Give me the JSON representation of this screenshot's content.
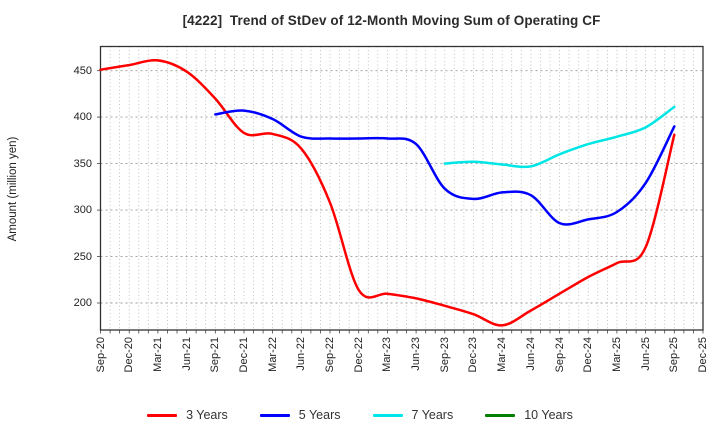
{
  "figure": {
    "title": "[4222]  Trend of StDev of 12-Month Moving Sum of Operating CF"
  },
  "chart_data": {
    "type": "line",
    "title": "[4222]  Trend of StDev of 12-Month Moving Sum of Operating CF",
    "xlabel": "",
    "ylabel": "Amount (million yen)",
    "categories": [
      "Sep-20",
      "Dec-20",
      "Mar-21",
      "Jun-21",
      "Sep-21",
      "Dec-21",
      "Mar-22",
      "Jun-22",
      "Sep-22",
      "Dec-22",
      "Mar-23",
      "Jun-23",
      "Sep-23",
      "Dec-23",
      "Mar-24",
      "Jun-24",
      "Sep-24",
      "Dec-24",
      "Mar-25",
      "Jun-25",
      "Sep-25",
      "Dec-25"
    ],
    "yticks": [
      200,
      250,
      300,
      350,
      400,
      450
    ],
    "ylim": [
      171,
      476
    ],
    "grid": true,
    "minor_vertical_grid_per_interval": 3,
    "legend_position": "bottom",
    "series": [
      {
        "name": "3 Years",
        "color": "#ff0000",
        "values": [
          451,
          456,
          461,
          449,
          420,
          383,
          382,
          366,
          308,
          214,
          210,
          205,
          197,
          188,
          176,
          192,
          210,
          228,
          243,
          260,
          381,
          null
        ]
      },
      {
        "name": "5 Years",
        "color": "#0000ff",
        "values": [
          null,
          null,
          null,
          null,
          403,
          407,
          398,
          379,
          377,
          377,
          377,
          371,
          323,
          312,
          319,
          316,
          286,
          290,
          298,
          329,
          390,
          null
        ]
      },
      {
        "name": "7 Years",
        "color": "#00e5e5",
        "values": [
          null,
          null,
          null,
          null,
          null,
          null,
          null,
          null,
          null,
          null,
          null,
          null,
          350,
          352,
          349,
          347,
          360,
          371,
          379,
          389,
          411,
          null
        ]
      },
      {
        "name": "10 Years",
        "color": "#008000",
        "values": [
          null,
          null,
          null,
          null,
          null,
          null,
          null,
          null,
          null,
          null,
          null,
          null,
          null,
          null,
          null,
          null,
          null,
          null,
          null,
          null,
          null,
          null
        ]
      }
    ]
  }
}
